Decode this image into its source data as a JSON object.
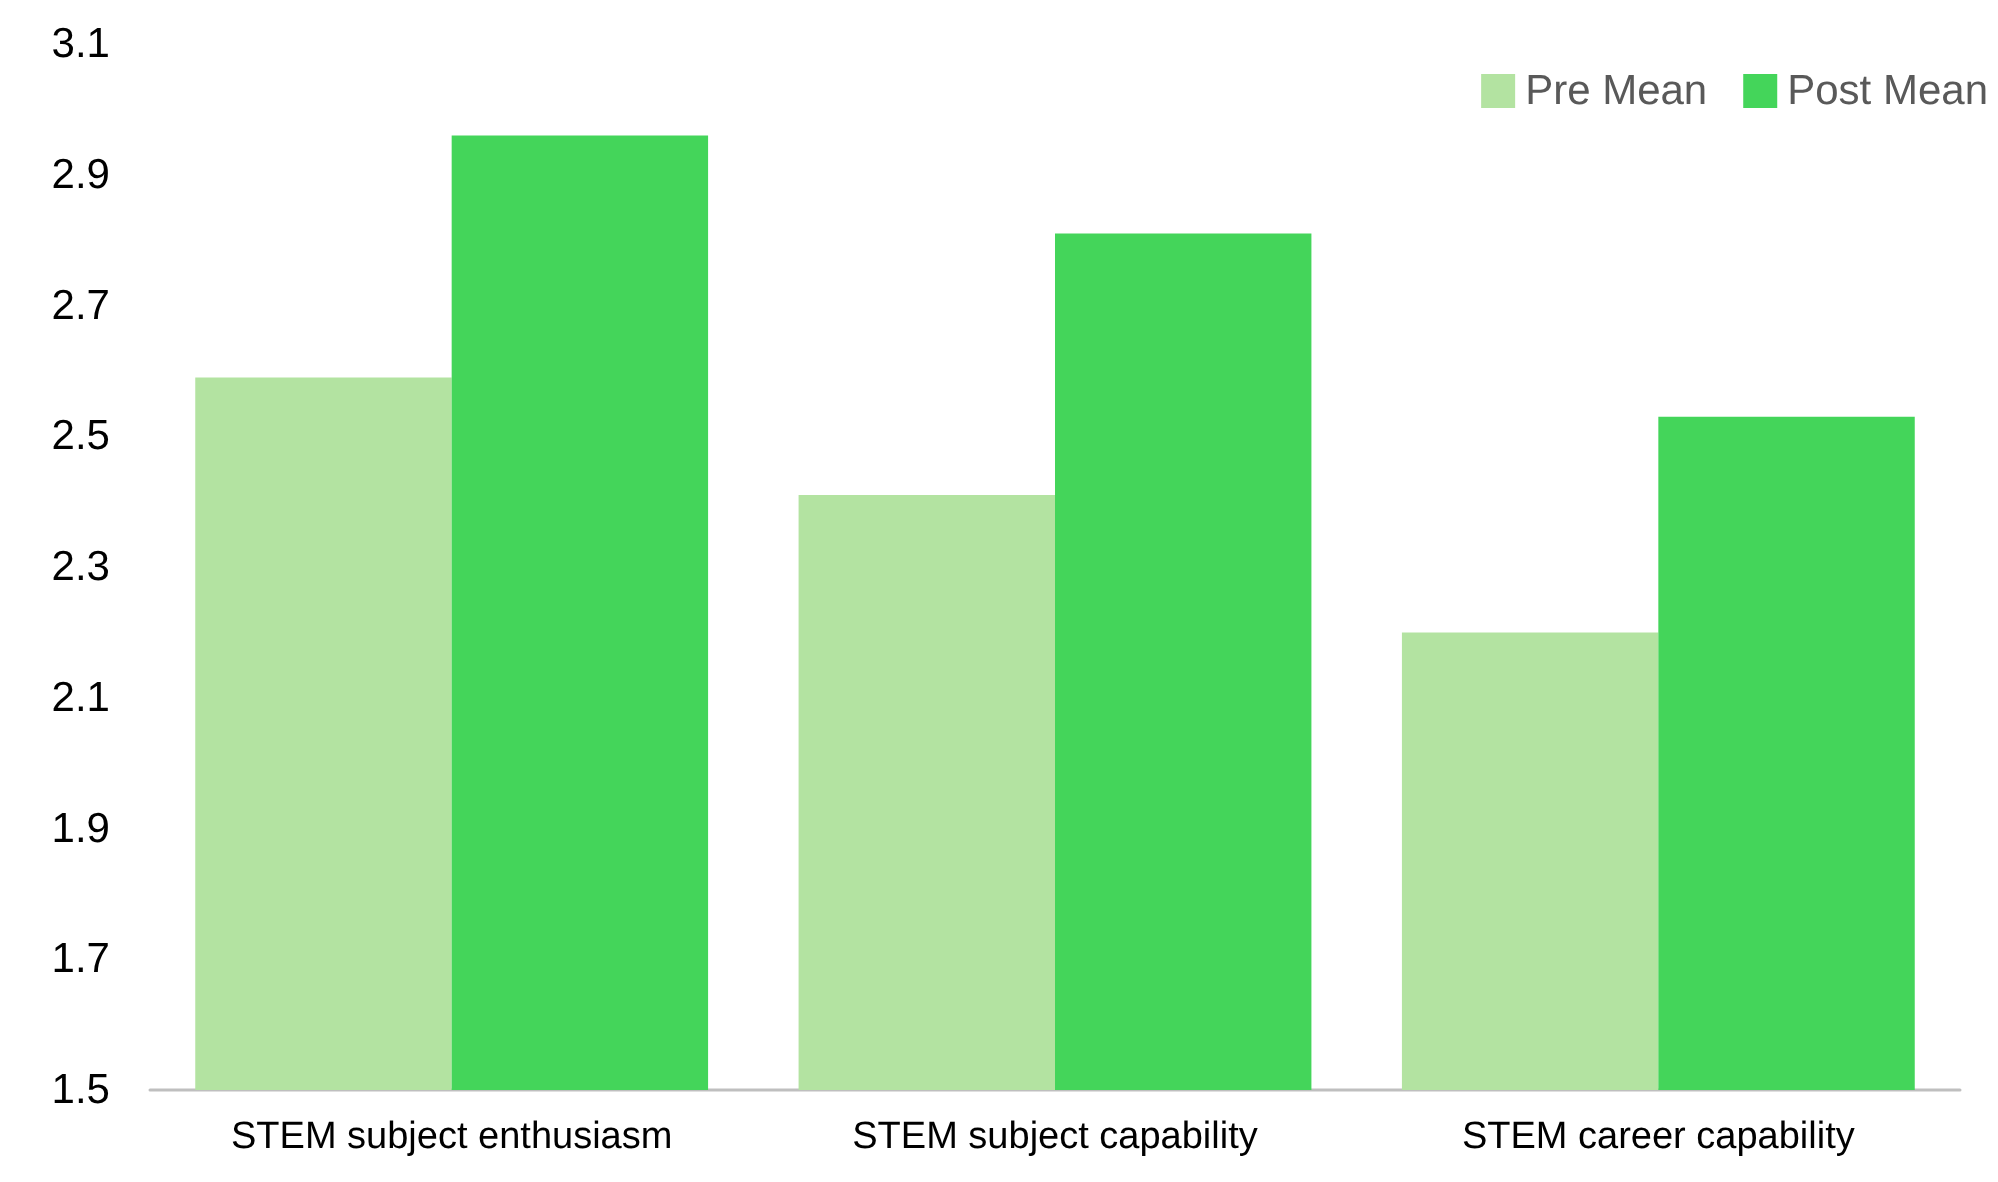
{
  "chart_data": {
    "type": "bar",
    "categories": [
      "STEM subject enthusiasm",
      "STEM subject capability",
      "STEM career capability"
    ],
    "series": [
      {
        "name": "Pre Mean",
        "color": "#b3e3a1",
        "values": [
          2.59,
          2.41,
          2.2
        ]
      },
      {
        "name": "Post Mean",
        "color": "#44d55a",
        "values": [
          2.96,
          2.81,
          2.53
        ]
      }
    ],
    "ylim": [
      1.5,
      3.1
    ],
    "yticks": [
      1.5,
      1.7,
      1.9,
      2.1,
      2.3,
      2.5,
      2.7,
      2.9,
      3.1
    ],
    "grid": false,
    "legend": "top right"
  }
}
